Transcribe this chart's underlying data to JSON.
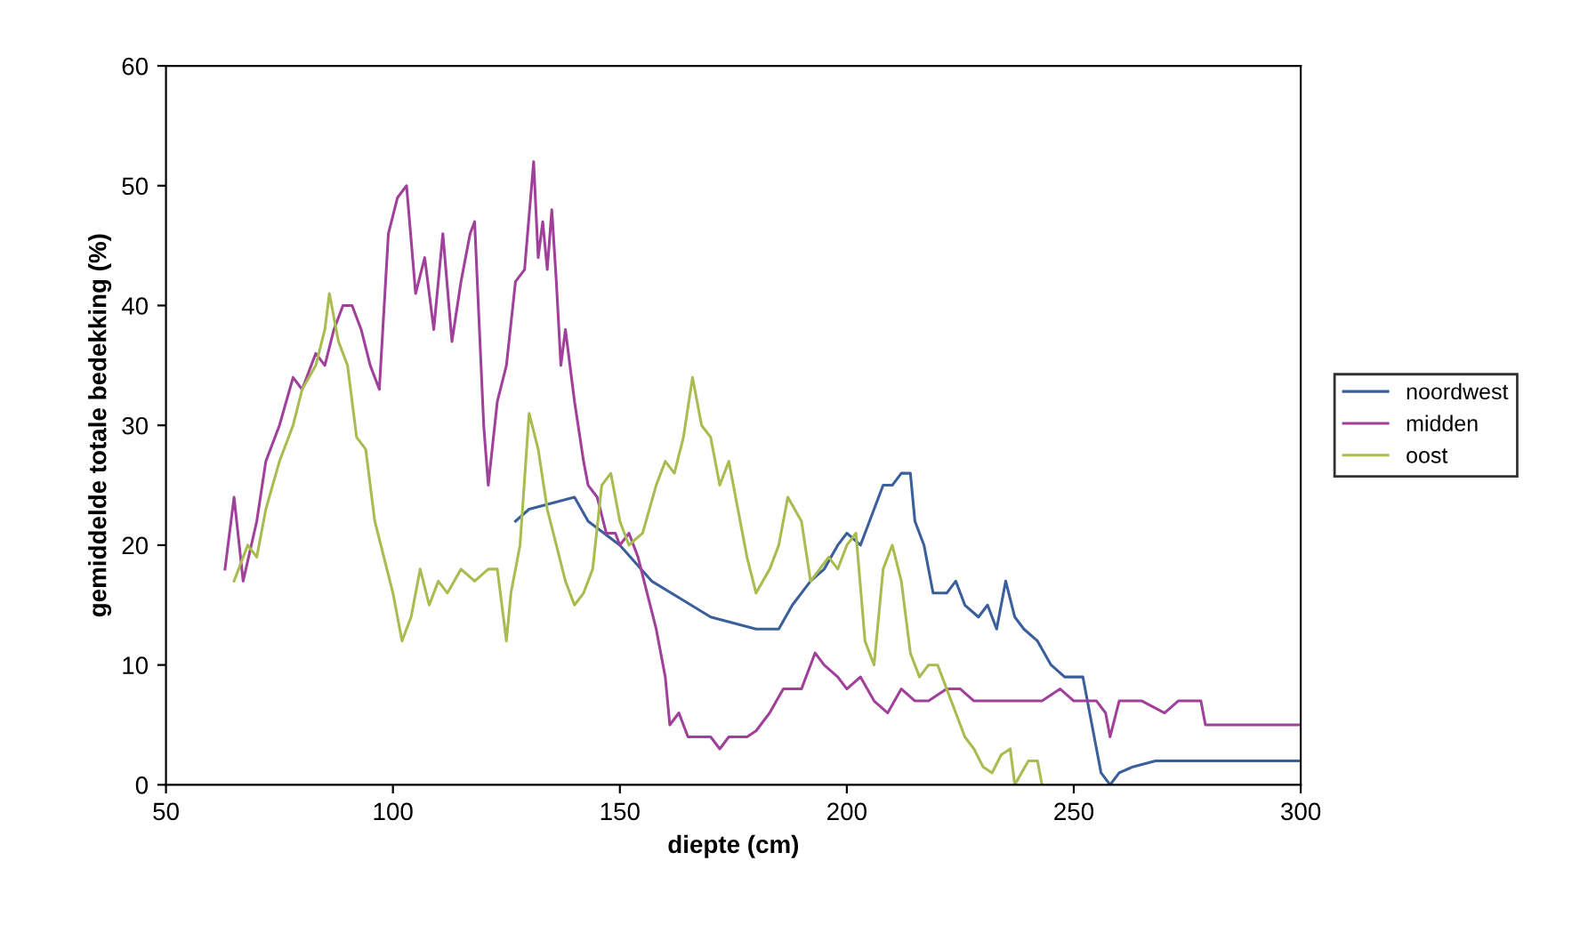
{
  "chart_data": {
    "type": "line",
    "xlabel": "diepte (cm)",
    "ylabel": "gemiddelde totale bedekking (%)",
    "xlim": [
      50,
      300
    ],
    "xticks": [
      50,
      100,
      150,
      200,
      250,
      300
    ],
    "ylim": [
      0,
      60
    ],
    "yticks": [
      0,
      10,
      20,
      30,
      40,
      50,
      60
    ],
    "grid": false,
    "legend": "right",
    "marker": "none",
    "line_style": "solid",
    "series": [
      {
        "name": "noordwest",
        "color": "#3a5f9a",
        "x": [
          127,
          130,
          140,
          143,
          150,
          157,
          170,
          180,
          185,
          188,
          192,
          195,
          198,
          200,
          203,
          206,
          208,
          210,
          212,
          214,
          215,
          217,
          219,
          222,
          224,
          226,
          229,
          231,
          233,
          235,
          237,
          239,
          242,
          245,
          248,
          252,
          254,
          256,
          258,
          260,
          263,
          268,
          280,
          300
        ],
        "values": [
          22,
          23,
          24,
          22,
          20,
          17,
          14,
          13,
          13,
          15,
          17,
          18,
          20,
          21,
          20,
          23,
          25,
          25,
          26,
          26,
          22,
          20,
          16,
          16,
          17,
          15,
          14,
          15,
          13,
          17,
          14,
          13,
          12,
          10,
          9,
          9,
          5,
          1,
          0,
          1,
          1.5,
          2,
          2,
          2
        ]
      },
      {
        "name": "midden",
        "color": "#a0409a",
        "x": [
          63,
          65,
          67,
          70,
          72,
          75,
          78,
          80,
          83,
          85,
          87,
          89,
          91,
          93,
          95,
          97,
          99,
          101,
          103,
          105,
          107,
          109,
          111,
          113,
          115,
          117,
          118,
          120,
          121,
          123,
          125,
          127,
          129,
          131,
          132,
          133,
          134,
          135,
          136,
          137,
          138,
          140,
          142,
          143,
          145,
          147,
          149,
          150,
          152,
          154,
          156,
          158,
          160,
          161,
          163,
          165,
          167,
          170,
          172,
          174,
          176,
          178,
          180,
          183,
          186,
          190,
          193,
          195,
          198,
          200,
          203,
          206,
          209,
          212,
          215,
          218,
          222,
          225,
          228,
          231,
          240,
          243,
          247,
          250,
          255,
          257,
          258,
          260,
          265,
          270,
          273,
          278,
          279,
          290,
          300
        ],
        "values": [
          18,
          24,
          17,
          22,
          27,
          30,
          34,
          33,
          36,
          35,
          38,
          40,
          40,
          38,
          35,
          33,
          46,
          49,
          50,
          41,
          44,
          38,
          46,
          37,
          42,
          46,
          47,
          30,
          25,
          32,
          35,
          42,
          43,
          52,
          44,
          47,
          43,
          48,
          42,
          35,
          38,
          32,
          27,
          25,
          24,
          21,
          21,
          20,
          21,
          19,
          16,
          13,
          9,
          5,
          6,
          4,
          4,
          4,
          3,
          4,
          4,
          4,
          4.5,
          6,
          8,
          8,
          11,
          10,
          9,
          8,
          9,
          7,
          6,
          8,
          7,
          7,
          8,
          8,
          7,
          7,
          7,
          7,
          8,
          7,
          7,
          6,
          4,
          7,
          7,
          6,
          7,
          7,
          5,
          5,
          5
        ]
      },
      {
        "name": "oost",
        "color": "#a8bc50",
        "x": [
          65,
          68,
          70,
          72,
          75,
          78,
          80,
          83,
          85,
          86,
          88,
          90,
          92,
          94,
          96,
          98,
          100,
          102,
          104,
          106,
          108,
          110,
          112,
          115,
          118,
          121,
          123,
          125,
          126,
          128,
          130,
          132,
          134,
          136,
          138,
          140,
          142,
          144,
          146,
          148,
          150,
          152,
          155,
          158,
          160,
          162,
          164,
          166,
          168,
          170,
          172,
          174,
          176,
          178,
          180,
          183,
          185,
          187,
          190,
          192,
          194,
          196,
          198,
          200,
          202,
          204,
          206,
          208,
          210,
          212,
          214,
          216,
          218,
          220,
          222,
          224,
          226,
          228,
          230,
          232,
          234,
          236,
          237,
          240,
          242,
          243
        ],
        "values": [
          17,
          20,
          19,
          23,
          27,
          30,
          33,
          35,
          38,
          41,
          37,
          35,
          29,
          28,
          22,
          19,
          16,
          12,
          14,
          18,
          15,
          17,
          16,
          18,
          17,
          18,
          18,
          12,
          16,
          20,
          31,
          28,
          23,
          20,
          17,
          15,
          16,
          18,
          25,
          26,
          22,
          20,
          21,
          25,
          27,
          26,
          29,
          34,
          30,
          29,
          25,
          27,
          23,
          19,
          16,
          18,
          20,
          24,
          22,
          17,
          18,
          19,
          18,
          20,
          21,
          12,
          10,
          18,
          20,
          17,
          11,
          9,
          10,
          10,
          8,
          6,
          4,
          3,
          1.5,
          1,
          2.5,
          3,
          0,
          2,
          2,
          0
        ]
      }
    ]
  }
}
